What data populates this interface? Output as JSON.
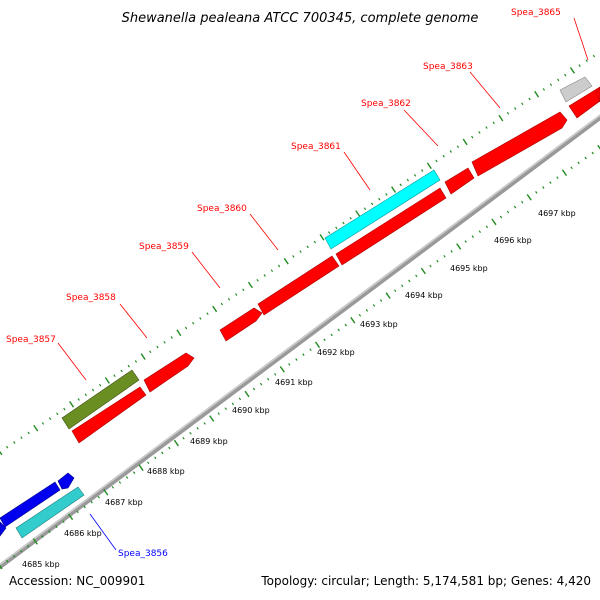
{
  "title": "Shewanella pealeana ATCC 700345, complete genome",
  "footer": {
    "accession": "Accession: NC_009901",
    "stats": "Topology: circular; Length: 5,174,581 bp; Genes: 4,420"
  },
  "colors": {
    "red": "#ff0000",
    "cyan": "#00ffff",
    "teal": "#33cccc",
    "olive": "#6b8e23",
    "blue": "#0000ff",
    "gray": "#bbbbbb",
    "tick": "#228b22",
    "backbone": "#888888"
  },
  "kbp_labels": [
    "4685 kbp",
    "4686 kbp",
    "4687 kbp",
    "4688 kbp",
    "4689 kbp",
    "4690 kbp",
    "4691 kbp",
    "4692 kbp",
    "4693 kbp",
    "4694 kbp",
    "4695 kbp",
    "4696 kbp",
    "4697 kbp"
  ],
  "genes": [
    {
      "label": "Spea_3865",
      "color": "red"
    },
    {
      "label": "Spea_3863",
      "color": "red"
    },
    {
      "label": "Spea_3862",
      "color": "red"
    },
    {
      "label": "Spea_3861",
      "color": "red"
    },
    {
      "label": "Spea_3860",
      "color": "red"
    },
    {
      "label": "Spea_3859",
      "color": "red"
    },
    {
      "label": "Spea_3858",
      "color": "red"
    },
    {
      "label": "Spea_3857",
      "color": "red"
    },
    {
      "label": "Spea_3856",
      "color": "blue"
    }
  ]
}
